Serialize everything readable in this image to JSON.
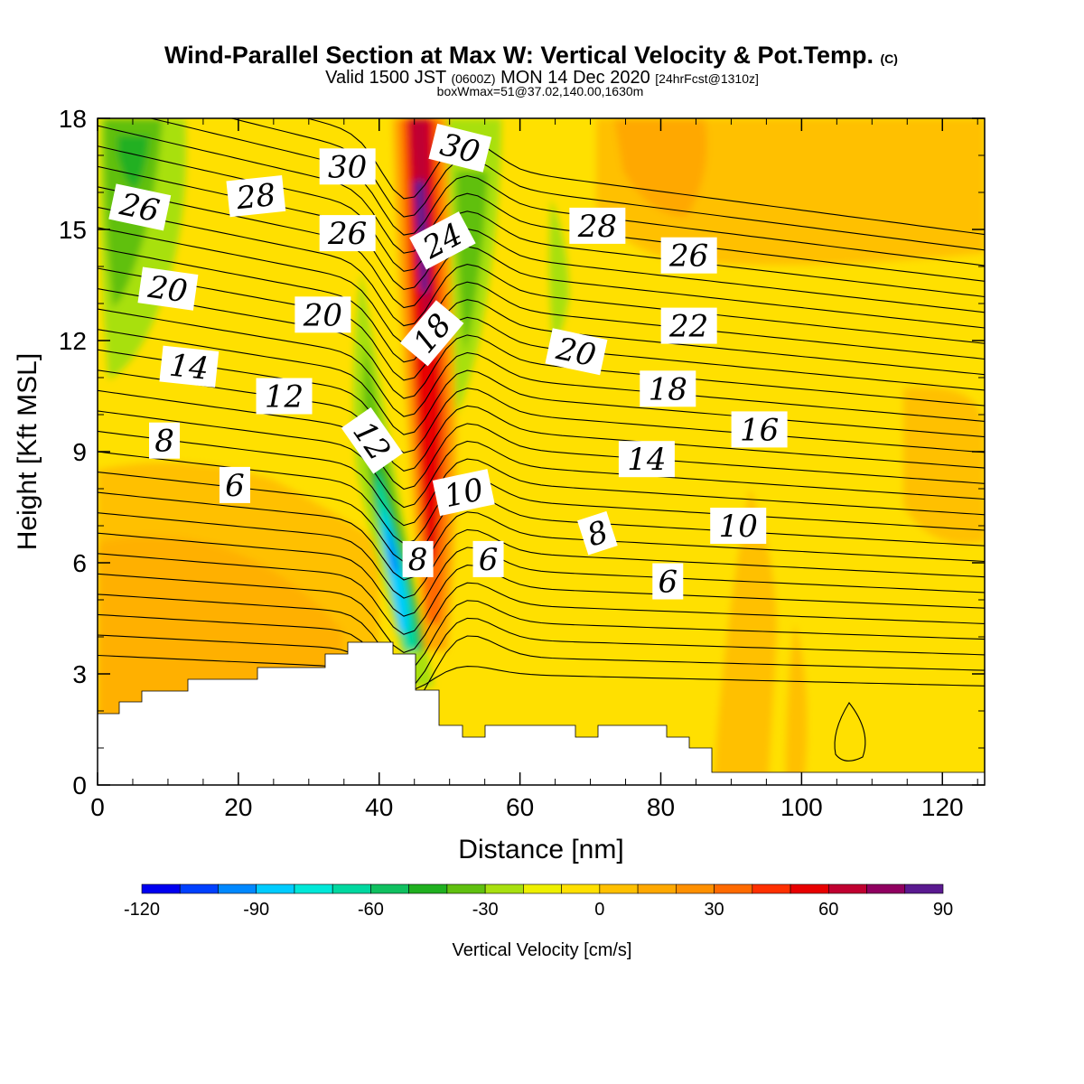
{
  "chart_data": {
    "type": "heatmap",
    "title": "Wind-Parallel Section at Max W: Vertical Velocity & Pot.Temp.",
    "title_mark": "(C)",
    "subtitle_valid": "Valid 1500 JST",
    "subtitle_zulu": "(0600Z)",
    "subtitle_date": "MON 14 Dec 2020",
    "subtitle_fcst": "[24hrFcst@1310z]",
    "subtitle2": "boxWmax=51@37.02,140.00,1630m",
    "xlabel": "Distance [nm]",
    "ylabel": "Height [Kft MSL]",
    "xlim": [
      0,
      126
    ],
    "ylim": [
      0,
      18
    ],
    "xticks": [
      "0",
      "20",
      "40",
      "60",
      "80",
      "100",
      "120"
    ],
    "yticks": [
      "0",
      "3",
      "6",
      "9",
      "12",
      "15",
      "18"
    ],
    "colorbar": {
      "label": "Vertical Velocity [cm/s]",
      "ticks": [
        "-120",
        "-90",
        "-60",
        "-30",
        "0",
        "30",
        "60",
        "90"
      ],
      "levels": [
        -120,
        -110,
        -100,
        -90,
        -80,
        -70,
        -60,
        -50,
        -40,
        -30,
        -20,
        -10,
        0,
        10,
        20,
        30,
        40,
        50,
        60,
        70,
        80,
        90
      ],
      "colors": [
        "#0000f0",
        "#0040ff",
        "#0088ff",
        "#00ccff",
        "#00e8d8",
        "#00d8a0",
        "#10c060",
        "#20b020",
        "#60c010",
        "#a8e010",
        "#eef000",
        "#ffe000",
        "#ffc000",
        "#ffa800",
        "#ff9000",
        "#ff6a00",
        "#ff3000",
        "#e80000",
        "#c00030",
        "#900060",
        "#5a1a90"
      ]
    },
    "theta_contour_labels": [
      {
        "text": "26",
        "x": 6,
        "y": 15.6,
        "rot": 12
      },
      {
        "text": "28",
        "x": 22.5,
        "y": 15.9,
        "rot": -6
      },
      {
        "text": "30",
        "x": 35.5,
        "y": 16.7,
        "rot": 0
      },
      {
        "text": "26",
        "x": 35.5,
        "y": 14.9,
        "rot": 0
      },
      {
        "text": "30",
        "x": 51.5,
        "y": 17.2,
        "rot": 14
      },
      {
        "text": "24",
        "x": 49,
        "y": 14.7,
        "rot": -28
      },
      {
        "text": "28",
        "x": 71,
        "y": 15.1,
        "rot": 0
      },
      {
        "text": "26",
        "x": 84,
        "y": 14.3,
        "rot": 0
      },
      {
        "text": "20",
        "x": 10,
        "y": 13.4,
        "rot": 8
      },
      {
        "text": "20",
        "x": 32,
        "y": 12.7,
        "rot": 0
      },
      {
        "text": "18",
        "x": 47.5,
        "y": 12.2,
        "rot": -50
      },
      {
        "text": "22",
        "x": 84,
        "y": 12.4,
        "rot": 0
      },
      {
        "text": "20",
        "x": 68,
        "y": 11.7,
        "rot": 12
      },
      {
        "text": "14",
        "x": 13,
        "y": 11.3,
        "rot": 6
      },
      {
        "text": "12",
        "x": 26.5,
        "y": 10.5,
        "rot": 0
      },
      {
        "text": "18",
        "x": 81,
        "y": 10.7,
        "rot": 0
      },
      {
        "text": "16",
        "x": 94,
        "y": 9.6,
        "rot": 0
      },
      {
        "text": "12",
        "x": 39,
        "y": 9.3,
        "rot": 55
      },
      {
        "text": "8",
        "x": 9.5,
        "y": 9.3,
        "rot": 0
      },
      {
        "text": "14",
        "x": 78,
        "y": 8.8,
        "rot": 0
      },
      {
        "text": "6",
        "x": 19.5,
        "y": 8.1,
        "rot": 0
      },
      {
        "text": "10",
        "x": 52,
        "y": 7.9,
        "rot": -12
      },
      {
        "text": "10",
        "x": 91,
        "y": 7.0,
        "rot": 0
      },
      {
        "text": "8",
        "x": 71,
        "y": 6.8,
        "rot": -18
      },
      {
        "text": "8",
        "x": 45.5,
        "y": 6.1,
        "rot": 0
      },
      {
        "text": "6",
        "x": 55.5,
        "y": 6.1,
        "rot": 0
      },
      {
        "text": "6",
        "x": 81,
        "y": 5.5,
        "rot": 0
      }
    ]
  }
}
